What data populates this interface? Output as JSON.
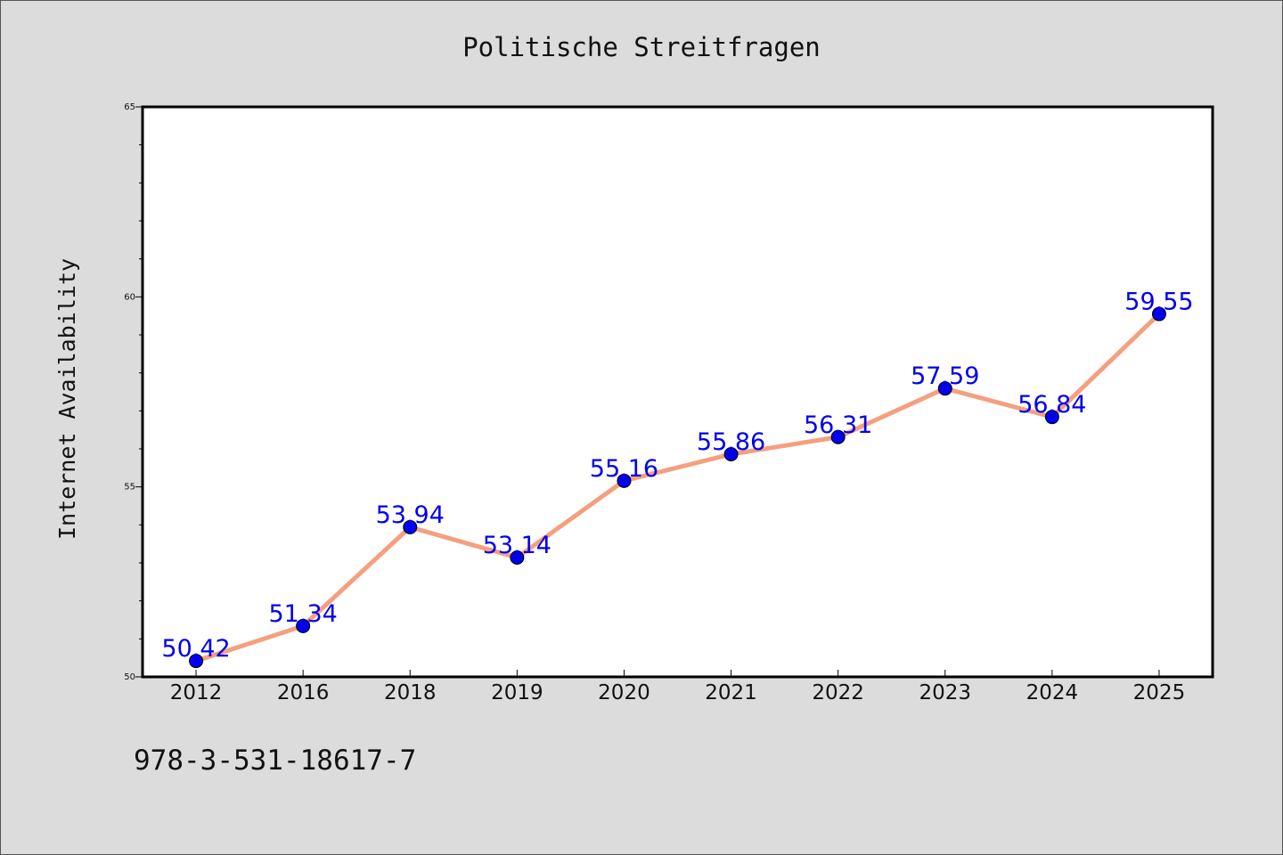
{
  "chart_data": {
    "type": "line",
    "title": "Politische Streitfragen",
    "xlabel": "",
    "ylabel": "Internet Availability",
    "categories": [
      "2012",
      "2016",
      "2018",
      "2019",
      "2020",
      "2021",
      "2022",
      "2023",
      "2024",
      "2025"
    ],
    "series": [
      {
        "values": [
          50.42,
          51.34,
          53.94,
          53.14,
          55.16,
          55.86,
          56.31,
          57.59,
          56.84,
          59.55
        ],
        "labels": [
          "50.42",
          "51.34",
          "53.94",
          "53.14",
          "55.16",
          "55.86",
          "56.31",
          "57.59",
          "56.84",
          "59.55"
        ]
      }
    ],
    "ylim": [
      50,
      65
    ],
    "yticks": [
      50,
      55,
      60,
      65
    ],
    "ytick_labels": [
      "50",
      "55",
      "60",
      "65"
    ],
    "grid": false,
    "annotation": "978-3-531-18617-7",
    "colors": {
      "line": "#f4a07f",
      "marker": "#0000ee",
      "label": "#0000ee",
      "background": "#dcdcdc",
      "plot_bg": "#ffffff"
    }
  }
}
